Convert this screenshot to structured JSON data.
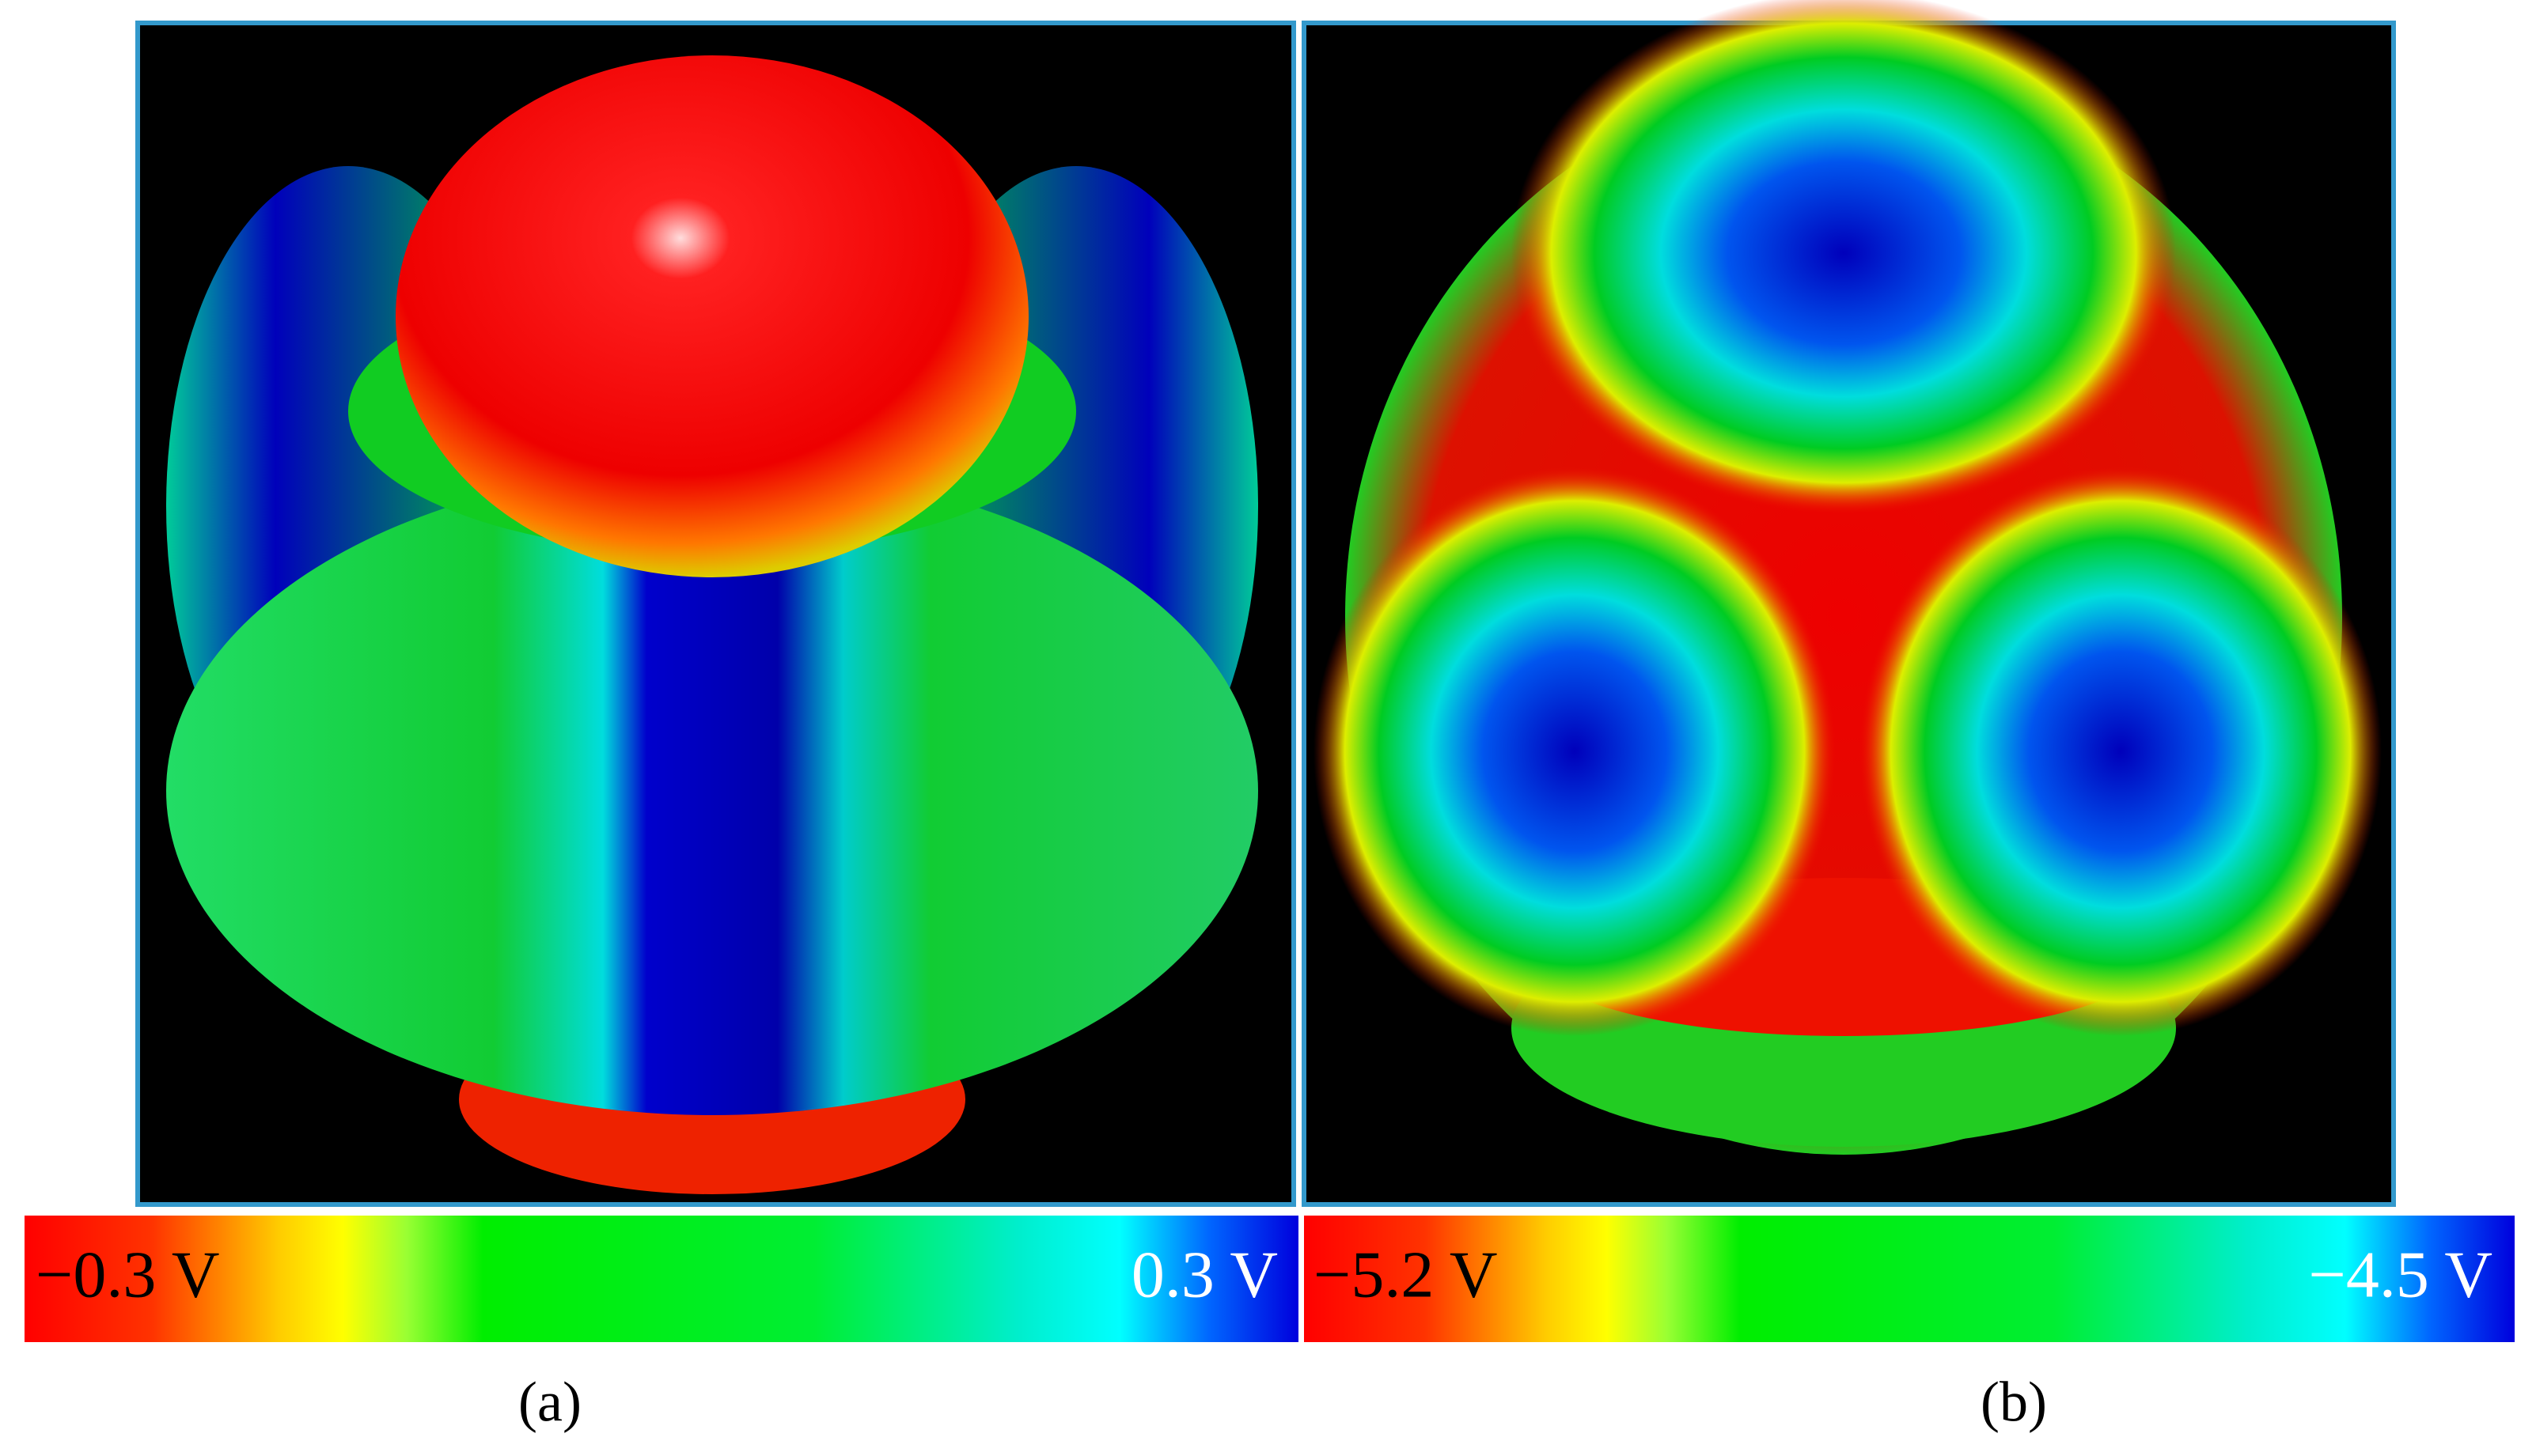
{
  "panels": [
    {
      "label": "(a)",
      "colorbar": {
        "min_label": "−0.3 V",
        "max_label": "0.3 V"
      }
    },
    {
      "label": "(b)",
      "colorbar": {
        "min_label": "−5.2 V",
        "max_label": "−4.5 V"
      }
    }
  ]
}
